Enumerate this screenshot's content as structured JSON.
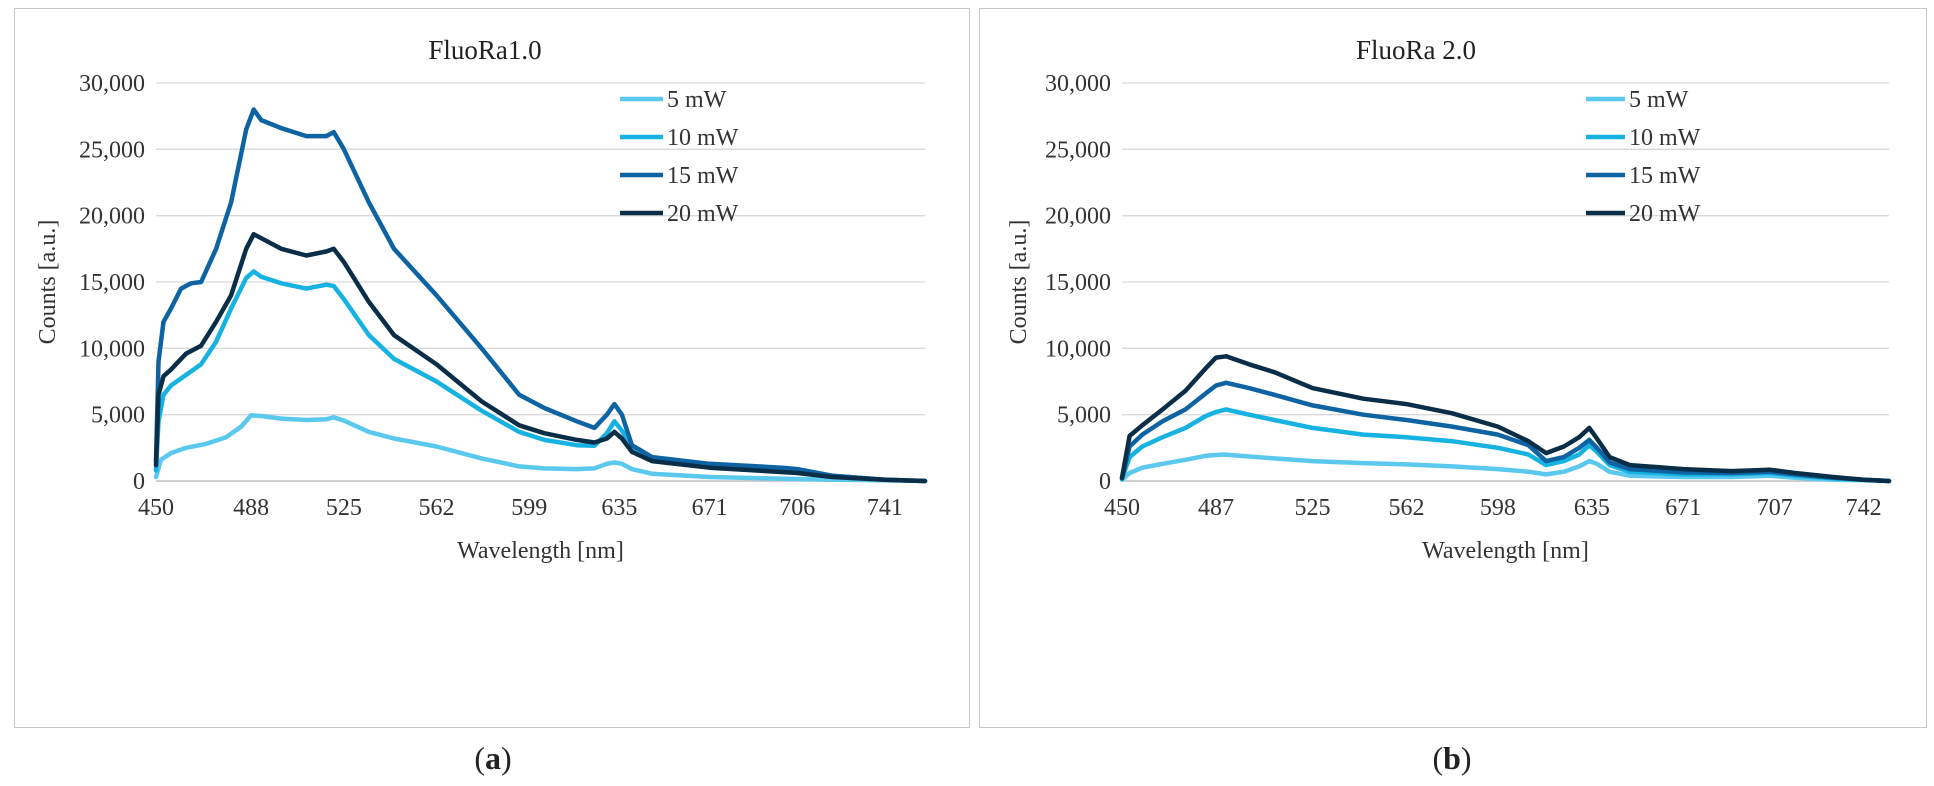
{
  "subfigures": [
    {
      "open": "(",
      "letter": "a",
      "close": ")"
    },
    {
      "open": "(",
      "letter": "b",
      "close": ")"
    }
  ],
  "chart_data": [
    {
      "type": "line",
      "title": "FluoRa1.0",
      "xlabel": "Wavelength [nm]",
      "ylabel": "Counts [a.u.]",
      "xlim": [
        450,
        757
      ],
      "ylim": [
        0,
        30000
      ],
      "xticks": [
        450,
        488,
        525,
        562,
        599,
        635,
        671,
        706,
        741
      ],
      "xtick_labels": [
        "450",
        "488",
        "525",
        "562",
        "599",
        "635",
        "671",
        "706",
        "741"
      ],
      "yticks": [
        0,
        5000,
        10000,
        15000,
        20000,
        25000,
        30000
      ],
      "ytick_labels": [
        "0",
        "5,000",
        "10,000",
        "15,000",
        "20,000",
        "25,000",
        "30,000"
      ],
      "grid": true,
      "legend_position": "top-right",
      "series": [
        {
          "name": "5 mW",
          "color": "#5bc8ee",
          "x": [
            450,
            452,
            456,
            462,
            470,
            478,
            484,
            488,
            492,
            500,
            510,
            518,
            521,
            525,
            535,
            545,
            562,
            580,
            595,
            605,
            618,
            625,
            630,
            633,
            636,
            640,
            648,
            671,
            706,
            720,
            741,
            757
          ],
          "y": [
            300,
            1600,
            2100,
            2500,
            2800,
            3300,
            4100,
            4950,
            4900,
            4700,
            4600,
            4650,
            4800,
            4550,
            3700,
            3200,
            2600,
            1700,
            1100,
            950,
            900,
            950,
            1300,
            1400,
            1300,
            900,
            550,
            300,
            150,
            100,
            50,
            0
          ]
        },
        {
          "name": "10 mW",
          "color": "#16b2e2",
          "x": [
            450,
            451,
            453,
            456,
            462,
            468,
            474,
            480,
            486,
            489,
            492,
            500,
            510,
            518,
            521,
            525,
            535,
            545,
            562,
            580,
            595,
            605,
            618,
            625,
            630,
            633,
            636,
            640,
            648,
            671,
            706,
            720,
            741,
            757
          ],
          "y": [
            800,
            4500,
            6500,
            7200,
            8000,
            8800,
            10500,
            13000,
            15300,
            15800,
            15400,
            14900,
            14500,
            14800,
            14700,
            13700,
            11000,
            9200,
            7500,
            5300,
            3700,
            3100,
            2700,
            2650,
            3600,
            4500,
            3800,
            2500,
            1700,
            1100,
            700,
            400,
            100,
            0
          ]
        },
        {
          "name": "15 mW",
          "color": "#0e63a3",
          "x": [
            450,
            451,
            453,
            456,
            460,
            464,
            468,
            474,
            480,
            486,
            489,
            492,
            500,
            510,
            518,
            521,
            525,
            535,
            545,
            562,
            580,
            595,
            605,
            618,
            625,
            630,
            633,
            636,
            640,
            648,
            671,
            700,
            706,
            720,
            741,
            757
          ],
          "y": [
            1500,
            9000,
            12000,
            13000,
            14500,
            14900,
            15000,
            17500,
            21000,
            26500,
            28000,
            27200,
            26600,
            26000,
            26000,
            26300,
            25000,
            21000,
            17500,
            14000,
            10000,
            6500,
            5500,
            4500,
            4000,
            5000,
            5800,
            5000,
            2700,
            1800,
            1300,
            1000,
            900,
            400,
            100,
            0
          ]
        },
        {
          "name": "20 mW",
          "color": "#0a2e47",
          "x": [
            450,
            451,
            453,
            456,
            462,
            468,
            474,
            480,
            486,
            489,
            492,
            500,
            510,
            518,
            521,
            525,
            535,
            545,
            562,
            580,
            595,
            605,
            618,
            625,
            630,
            633,
            636,
            640,
            648,
            671,
            706,
            720,
            741,
            757
          ],
          "y": [
            1200,
            6500,
            7900,
            8400,
            9600,
            10200,
            12000,
            14000,
            17500,
            18600,
            18300,
            17500,
            17000,
            17300,
            17500,
            16500,
            13500,
            11000,
            8800,
            6000,
            4200,
            3600,
            3100,
            2900,
            3200,
            3700,
            3200,
            2200,
            1500,
            1000,
            600,
            300,
            100,
            0
          ]
        }
      ]
    },
    {
      "type": "line",
      "title": "FluoRa 2.0",
      "xlabel": "Wavelength [nm]",
      "ylabel": "Counts [a.u.]",
      "xlim": [
        450,
        752
      ],
      "ylim": [
        0,
        30000
      ],
      "xticks": [
        450,
        487,
        525,
        562,
        598,
        635,
        671,
        707,
        742
      ],
      "xtick_labels": [
        "450",
        "487",
        "525",
        "562",
        "598",
        "635",
        "671",
        "707",
        "742"
      ],
      "yticks": [
        0,
        5000,
        10000,
        15000,
        20000,
        25000,
        30000
      ],
      "ytick_labels": [
        "0",
        "5,000",
        "10,000",
        "15,000",
        "20,000",
        "25,000",
        "30,000"
      ],
      "grid": true,
      "legend_position": "top-right",
      "series": [
        {
          "name": "5 mW",
          "color": "#5bc8ee",
          "x": [
            450,
            453,
            458,
            466,
            475,
            483,
            490,
            500,
            510,
            525,
            545,
            562,
            580,
            598,
            610,
            617,
            624,
            630,
            634,
            637,
            642,
            650,
            671,
            690,
            705,
            715,
            730,
            742,
            752
          ],
          "y": [
            100,
            600,
            1000,
            1300,
            1600,
            1900,
            2000,
            1850,
            1700,
            1500,
            1350,
            1250,
            1100,
            900,
            700,
            500,
            700,
            1100,
            1500,
            1300,
            700,
            400,
            300,
            300,
            400,
            250,
            100,
            50,
            0
          ]
        },
        {
          "name": "10 mW",
          "color": "#16b2e2",
          "x": [
            450,
            453,
            458,
            466,
            475,
            483,
            487,
            491,
            500,
            510,
            525,
            545,
            562,
            580,
            598,
            610,
            617,
            624,
            630,
            634,
            637,
            642,
            650,
            671,
            690,
            705,
            715,
            730,
            742,
            752
          ],
          "y": [
            150,
            1800,
            2600,
            3300,
            4000,
            4900,
            5200,
            5400,
            5000,
            4600,
            4000,
            3500,
            3300,
            3000,
            2500,
            2000,
            1200,
            1500,
            2000,
            2700,
            2200,
            1200,
            700,
            500,
            500,
            600,
            400,
            200,
            100,
            0
          ]
        },
        {
          "name": "15 mW",
          "color": "#0e63a3",
          "x": [
            450,
            453,
            458,
            466,
            475,
            483,
            487,
            491,
            500,
            510,
            525,
            545,
            562,
            580,
            598,
            610,
            617,
            624,
            630,
            634,
            637,
            642,
            650,
            671,
            690,
            705,
            715,
            730,
            742,
            752
          ],
          "y": [
            200,
            2600,
            3500,
            4500,
            5400,
            6600,
            7200,
            7400,
            7000,
            6500,
            5700,
            5000,
            4600,
            4100,
            3500,
            2700,
            1500,
            1800,
            2500,
            3100,
            2500,
            1400,
            900,
            650,
            600,
            700,
            500,
            250,
            100,
            0
          ]
        },
        {
          "name": "20 mW",
          "color": "#0a2e47",
          "x": [
            450,
            453,
            458,
            466,
            475,
            483,
            487,
            491,
            500,
            510,
            525,
            545,
            562,
            580,
            598,
            610,
            617,
            624,
            630,
            634,
            637,
            642,
            650,
            671,
            690,
            705,
            715,
            730,
            742,
            752
          ],
          "y": [
            250,
            3400,
            4200,
            5400,
            6800,
            8500,
            9300,
            9400,
            8800,
            8200,
            7000,
            6200,
            5800,
            5100,
            4100,
            3000,
            2100,
            2600,
            3300,
            4000,
            3200,
            1800,
            1200,
            900,
            750,
            850,
            600,
            300,
            100,
            0
          ]
        }
      ]
    }
  ]
}
